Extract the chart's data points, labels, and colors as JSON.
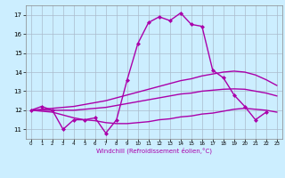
{
  "xlabel": "Windchill (Refroidissement éolien,°C)",
  "background_color": "#cceeff",
  "grid_color": "#aabbcc",
  "line_color": "#aa00aa",
  "xlim": [
    -0.5,
    23.5
  ],
  "ylim": [
    10.5,
    17.5
  ],
  "yticks": [
    11,
    12,
    13,
    14,
    15,
    16,
    17
  ],
  "xticks": [
    0,
    1,
    2,
    3,
    4,
    5,
    6,
    7,
    8,
    9,
    10,
    11,
    12,
    13,
    14,
    15,
    16,
    17,
    18,
    19,
    20,
    21,
    22,
    23
  ],
  "series": [
    {
      "x": [
        0,
        1,
        2,
        3,
        4,
        5,
        6,
        7,
        8,
        9,
        10,
        11,
        12,
        13,
        14,
        15,
        16,
        17,
        18,
        19,
        20,
        21,
        22
      ],
      "y": [
        12.0,
        12.2,
        12.0,
        11.0,
        11.5,
        11.5,
        11.6,
        10.8,
        11.5,
        13.6,
        15.5,
        16.6,
        16.9,
        16.7,
        17.1,
        16.5,
        16.4,
        14.1,
        13.7,
        12.8,
        12.2,
        11.5,
        11.9
      ],
      "marker": "D",
      "markersize": 2.0,
      "linewidth": 1.0,
      "has_marker": true
    },
    {
      "x": [
        0,
        1,
        2,
        3,
        4,
        5,
        6,
        7,
        8,
        9,
        10,
        11,
        12,
        13,
        14,
        15,
        16,
        17,
        18,
        19,
        20,
        21,
        22,
        23
      ],
      "y": [
        12.0,
        12.05,
        12.1,
        12.15,
        12.2,
        12.3,
        12.4,
        12.5,
        12.65,
        12.8,
        12.95,
        13.1,
        13.25,
        13.4,
        13.55,
        13.65,
        13.8,
        13.9,
        14.0,
        14.05,
        14.0,
        13.85,
        13.6,
        13.3
      ],
      "marker": null,
      "markersize": 0,
      "linewidth": 1.0,
      "has_marker": false
    },
    {
      "x": [
        0,
        1,
        2,
        3,
        4,
        5,
        6,
        7,
        8,
        9,
        10,
        11,
        12,
        13,
        14,
        15,
        16,
        17,
        18,
        19,
        20,
        21,
        22,
        23
      ],
      "y": [
        12.0,
        12.0,
        12.0,
        12.0,
        12.0,
        12.05,
        12.1,
        12.15,
        12.25,
        12.35,
        12.45,
        12.55,
        12.65,
        12.75,
        12.85,
        12.9,
        13.0,
        13.05,
        13.1,
        13.12,
        13.1,
        13.0,
        12.9,
        12.75
      ],
      "marker": null,
      "markersize": 0,
      "linewidth": 1.0,
      "has_marker": false
    },
    {
      "x": [
        0,
        1,
        2,
        3,
        4,
        5,
        6,
        7,
        8,
        9,
        10,
        11,
        12,
        13,
        14,
        15,
        16,
        17,
        18,
        19,
        20,
        21,
        22,
        23
      ],
      "y": [
        12.0,
        11.95,
        11.9,
        11.75,
        11.6,
        11.5,
        11.45,
        11.35,
        11.3,
        11.3,
        11.35,
        11.4,
        11.5,
        11.55,
        11.65,
        11.7,
        11.8,
        11.85,
        11.95,
        12.05,
        12.1,
        12.05,
        12.0,
        11.9
      ],
      "marker": null,
      "markersize": 0,
      "linewidth": 1.0,
      "has_marker": false
    }
  ]
}
